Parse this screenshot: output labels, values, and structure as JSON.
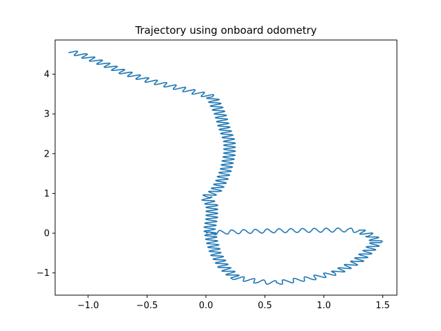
{
  "chart_data": {
    "type": "line",
    "title": "Trajectory using onboard odometry",
    "xlabel": "",
    "ylabel": "",
    "xlim": [
      -1.28,
      1.62
    ],
    "ylim": [
      -1.56,
      4.86
    ],
    "xticks": [
      -1.0,
      -0.5,
      0.0,
      0.5,
      1.0,
      1.5
    ],
    "xtick_labels": [
      "−1.0",
      "−0.5",
      "0.0",
      "0.5",
      "1.0",
      "1.5"
    ],
    "yticks": [
      -1,
      0,
      1,
      2,
      3,
      4
    ],
    "ytick_labels": [
      "−1",
      "0",
      "1",
      "2",
      "3",
      "4"
    ],
    "grid": false,
    "series": [
      {
        "color": "#1f77b4",
        "oscillation": {
          "amplitude": 0.05,
          "wavelength": 0.1
        },
        "path": [
          [
            0.0,
            0.0
          ],
          [
            0.2,
            0.03
          ],
          [
            0.6,
            0.06
          ],
          [
            0.9,
            0.07
          ],
          [
            1.2,
            0.08
          ],
          [
            1.3,
            0.06
          ],
          [
            1.4,
            -0.06
          ],
          [
            1.45,
            -0.22
          ],
          [
            1.38,
            -0.45
          ],
          [
            1.28,
            -0.72
          ],
          [
            1.1,
            -1.0
          ],
          [
            0.9,
            -1.13
          ],
          [
            0.6,
            -1.25
          ],
          [
            0.45,
            -1.22
          ],
          [
            0.25,
            -1.12
          ],
          [
            0.15,
            -0.85
          ],
          [
            0.08,
            -0.5
          ],
          [
            0.05,
            -0.2
          ],
          [
            0.03,
            0.1
          ],
          [
            0.05,
            0.4
          ],
          [
            0.05,
            0.7
          ],
          [
            0.0,
            0.9
          ],
          [
            0.08,
            1.05
          ],
          [
            0.13,
            1.3
          ],
          [
            0.17,
            1.6
          ],
          [
            0.2,
            2.0
          ],
          [
            0.2,
            2.3
          ],
          [
            0.15,
            2.7
          ],
          [
            0.12,
            3.0
          ],
          [
            0.08,
            3.25
          ],
          [
            0.05,
            3.43
          ],
          [
            -0.1,
            3.55
          ],
          [
            -0.3,
            3.7
          ],
          [
            -0.5,
            3.85
          ],
          [
            -0.7,
            4.05
          ],
          [
            -0.9,
            4.3
          ],
          [
            -1.05,
            4.48
          ],
          [
            -1.15,
            4.56
          ]
        ]
      }
    ]
  }
}
